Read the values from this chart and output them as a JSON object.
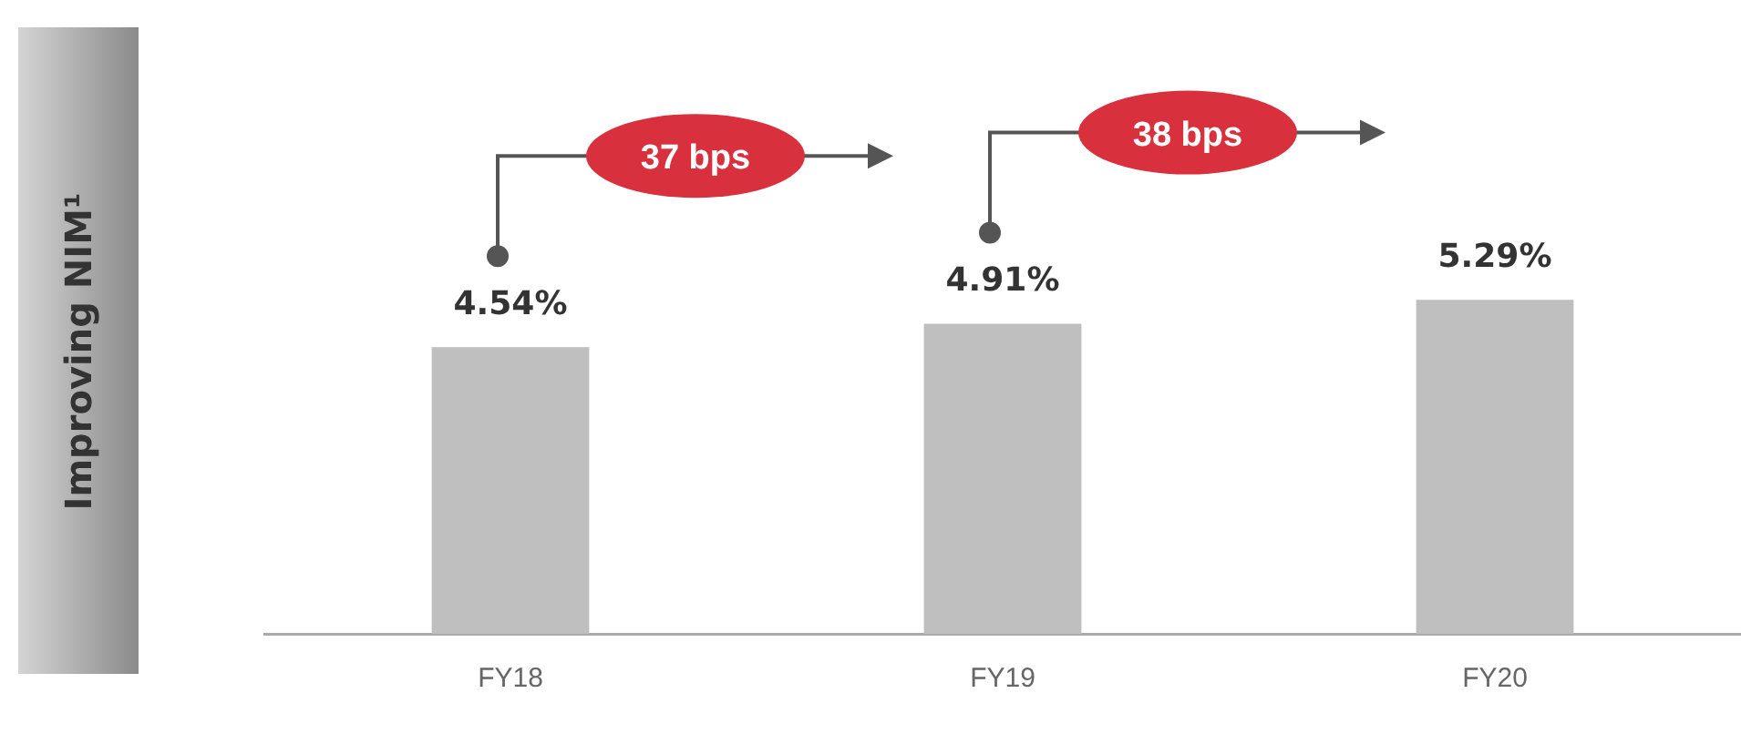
{
  "chart_data": {
    "type": "bar",
    "ylabel": "Improving NIM¹",
    "categories": [
      "FY18",
      "FY19",
      "FY20"
    ],
    "values": [
      4.54,
      4.91,
      5.29
    ],
    "color": "#bfbfbf",
    "value_labels": [
      "4.54%",
      "4.91%",
      "5.29%"
    ],
    "tick_labels": "x",
    "grid": false,
    "legend": false,
    "annotations": [
      "37 bps",
      "38 bps"
    ]
  }
}
